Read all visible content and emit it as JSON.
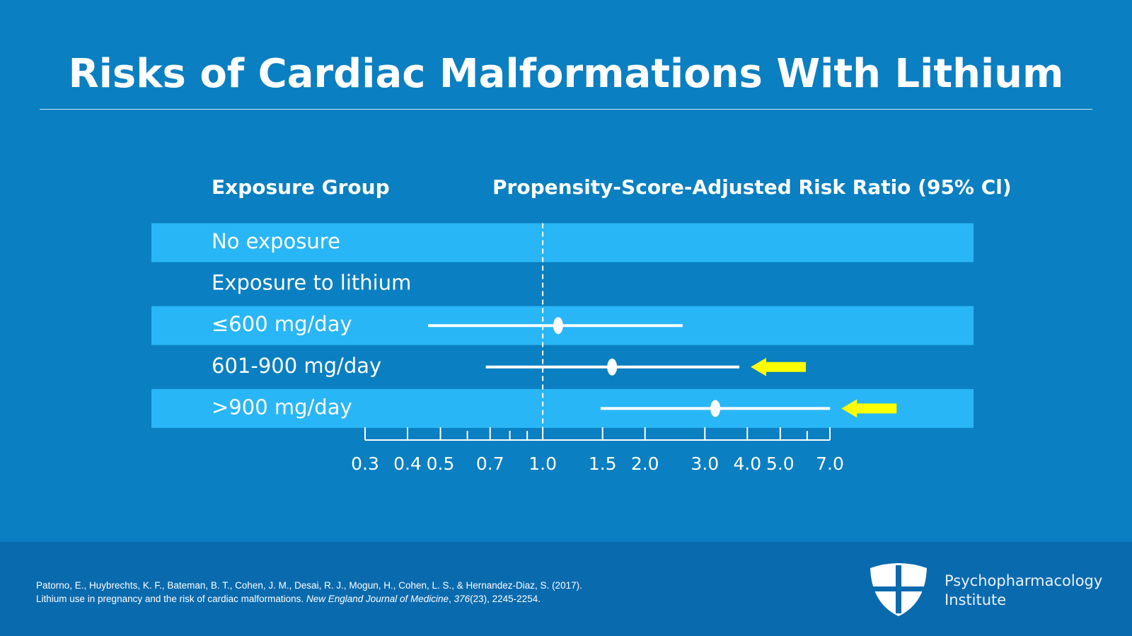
{
  "title": "Risks of Cardiac Malformations With Lithium",
  "chart_data": {
    "type": "forest",
    "column_headers": [
      "Exposure Group",
      "Propensity-Score-Adjusted Risk Ratio (95% Cl)"
    ],
    "categories": [
      "No exposure",
      "Exposure to lithium",
      "≤600 mg/day",
      "601-900 mg/day",
      ">900 mg/day"
    ],
    "values": [
      null,
      null,
      1.11,
      1.6,
      3.22
    ],
    "lower": [
      null,
      null,
      0.46,
      0.68,
      1.48
    ],
    "upper": [
      null,
      null,
      2.58,
      3.79,
      7.01
    ],
    "xscale": "log",
    "xlim": [
      0.3,
      7.0
    ],
    "xticks": [
      0.3,
      0.4,
      0.5,
      0.7,
      {
        "value": 1,
        "label": "1.0"
      },
      {
        "value": 1.5,
        "label": "1.5"
      },
      {
        "value": 2,
        "label": "2.0"
      },
      {
        "value": 3,
        "label": "3.0"
      },
      {
        "value": 4,
        "label": "4.0"
      },
      {
        "value": 5,
        "label": "5.0"
      },
      {
        "value": 7,
        "label": "7.0"
      }
    ],
    "xminor_ticks": [
      0.6,
      0.8,
      0.9,
      6
    ],
    "reference_line": 1,
    "color": "#ffffff",
    "band_color": "#29b6f6",
    "highlighted": [
      false,
      false,
      false,
      true,
      true
    ],
    "highlight_color": "#ffff00"
  },
  "footer": {
    "citation_line1": "Patorno, E., Huybrechts, K. F., Bateman, B. T., Cohen, J. M., Desai, R. J., Mogun, H., Cohen, L. S., & Hernandez-Diaz, S. (2017).",
    "citation_line2": [
      "Lithium use in pregnancy and the risk of cardiac malformations.",
      "New England Journal of Medicine",
      ",",
      "376",
      "(23), 2245-2254."
    ],
    "logo": [
      "Psychopharmacology",
      "Institute"
    ]
  }
}
